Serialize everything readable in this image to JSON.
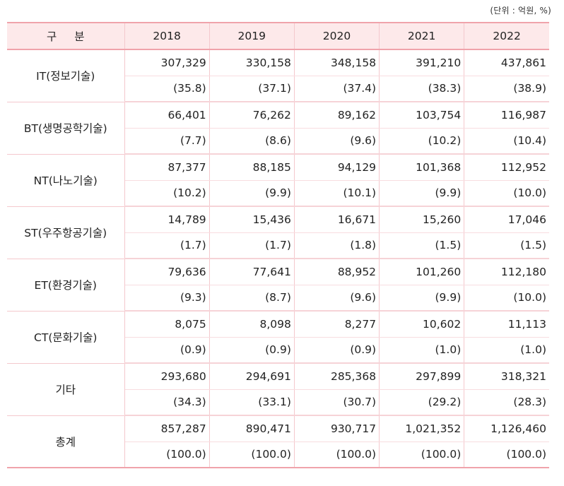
{
  "unit_note": "(단위 : 억원, %)",
  "header": {
    "category": "구 분",
    "years": [
      "2018",
      "2019",
      "2020",
      "2021",
      "2022"
    ]
  },
  "rows": [
    {
      "label": "IT(정보기술)",
      "values": [
        "307,329",
        "330,158",
        "348,158",
        "391,210",
        "437,861"
      ],
      "shares": [
        "(35.8)",
        "(37.1)",
        "(37.4)",
        "(38.3)",
        "(38.9)"
      ]
    },
    {
      "label": "BT(생명공학기술)",
      "values": [
        "66,401",
        "76,262",
        "89,162",
        "103,754",
        "116,987"
      ],
      "shares": [
        "(7.7)",
        "(8.6)",
        "(9.6)",
        "(10.2)",
        "(10.4)"
      ]
    },
    {
      "label": "NT(나노기술)",
      "values": [
        "87,377",
        "88,185",
        "94,129",
        "101,368",
        "112,952"
      ],
      "shares": [
        "(10.2)",
        "(9.9)",
        "(10.1)",
        "(9.9)",
        "(10.0)"
      ]
    },
    {
      "label": "ST(우주항공기술)",
      "values": [
        "14,789",
        "15,436",
        "16,671",
        "15,260",
        "17,046"
      ],
      "shares": [
        "(1.7)",
        "(1.7)",
        "(1.8)",
        "(1.5)",
        "(1.5)"
      ]
    },
    {
      "label": "ET(환경기술)",
      "values": [
        "79,636",
        "77,641",
        "88,952",
        "101,260",
        "112,180"
      ],
      "shares": [
        "(9.3)",
        "(8.7)",
        "(9.6)",
        "(9.9)",
        "(10.0)"
      ]
    },
    {
      "label": "CT(문화기술)",
      "values": [
        "8,075",
        "8,098",
        "8,277",
        "10,602",
        "11,113"
      ],
      "shares": [
        "(0.9)",
        "(0.9)",
        "(0.9)",
        "(1.0)",
        "(1.0)"
      ]
    },
    {
      "label": "기타",
      "values": [
        "293,680",
        "294,691",
        "285,368",
        "297,899",
        "318,321"
      ],
      "shares": [
        "(34.3)",
        "(33.1)",
        "(30.7)",
        "(29.2)",
        "(28.3)"
      ]
    },
    {
      "label": "총계",
      "values": [
        "857,287",
        "890,471",
        "930,717",
        "1,021,352",
        "1,126,460"
      ],
      "shares": [
        "(100.0)",
        "(100.0)",
        "(100.0)",
        "(100.0)",
        "(100.0)"
      ]
    }
  ]
}
